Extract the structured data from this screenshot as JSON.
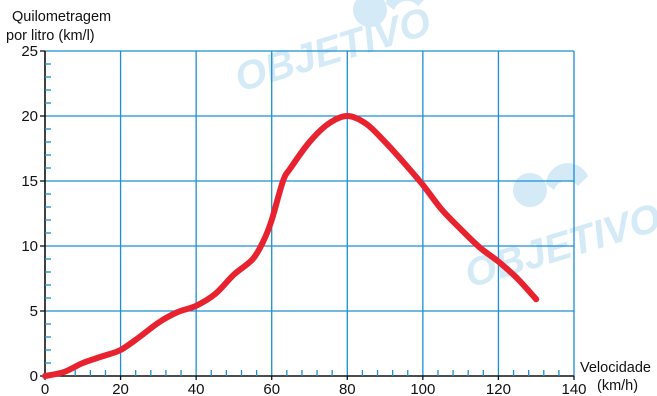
{
  "watermark": {
    "text": "OBJETIVO",
    "color": "#9fd0ea"
  },
  "chart_data": {
    "type": "line",
    "title": "",
    "ylabel_lines": [
      "Quilometragem",
      "por litro (km/l)"
    ],
    "xlabel_lines": [
      "Velocidade",
      "(km/h)"
    ],
    "xlim": [
      0,
      140
    ],
    "ylim": [
      0,
      25
    ],
    "xticks": [
      0,
      20,
      40,
      60,
      80,
      100,
      120,
      140
    ],
    "yticks": [
      0,
      5,
      10,
      15,
      20,
      25
    ],
    "x_minor_step": 4,
    "y_minor_step": 1,
    "grid": true,
    "grid_color": "#1a8fd4",
    "line_color": "#e8232f",
    "series": [
      {
        "x": [
          0,
          5,
          10,
          15,
          20,
          25,
          30,
          35,
          40,
          45,
          50,
          55,
          58,
          60,
          63,
          65,
          70,
          75,
          80,
          85,
          90,
          95,
          100,
          105,
          110,
          115,
          120,
          125,
          130
        ],
        "y": [
          0,
          0.3,
          1.0,
          1.5,
          2.0,
          3.0,
          4.1,
          4.9,
          5.4,
          6.3,
          7.8,
          9.0,
          10.5,
          12.0,
          15.0,
          16.0,
          18.0,
          19.4,
          20.0,
          19.4,
          18.0,
          16.4,
          14.7,
          12.8,
          11.3,
          9.9,
          8.8,
          7.5,
          5.9
        ]
      }
    ]
  }
}
